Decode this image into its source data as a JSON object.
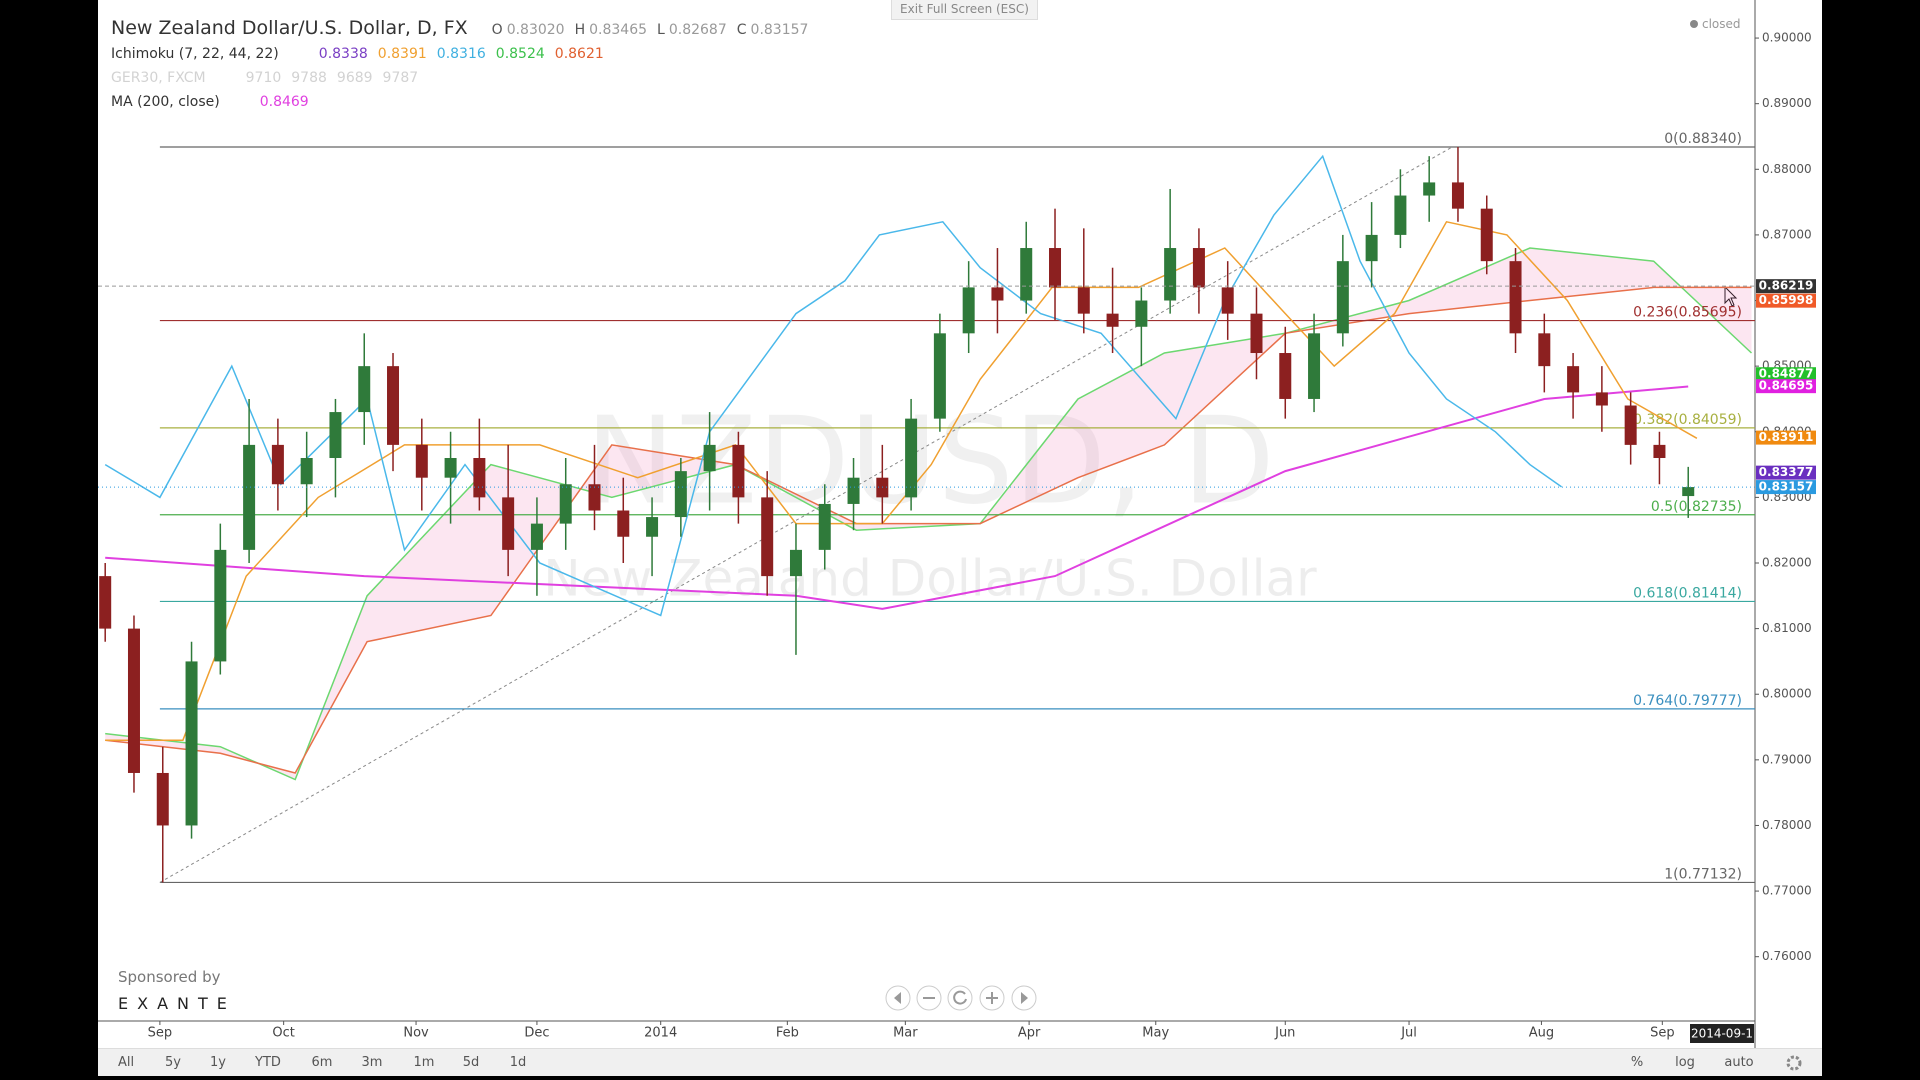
{
  "window": {
    "exit_fullscreen": "Exit Full Screen (ESC)",
    "status": "closed"
  },
  "legend": {
    "title": "New Zealand Dollar/U.S. Dollar, D, FX",
    "ohlc": [
      {
        "key": "O",
        "value": 0.8302,
        "label": "0.83020"
      },
      {
        "key": "H",
        "value": 0.83465,
        "label": "0.83465"
      },
      {
        "key": "L",
        "value": 0.82687,
        "label": "0.82687"
      },
      {
        "key": "C",
        "value": 0.83157,
        "label": "0.83157"
      }
    ],
    "indicators": [
      {
        "name": "Ichimoku (7, 22, 44, 22)",
        "values": [
          0.8338,
          0.8391,
          0.8316,
          0.8524,
          0.8621
        ],
        "colors": [
          "#7a3fc4",
          "#f0a030",
          "#40b0e0",
          "#3cc04c",
          "#e06030"
        ]
      },
      {
        "name": "GER30, FXCM",
        "values": [
          9710,
          9788,
          9689,
          9787
        ],
        "colors": [
          "#c8c8c8",
          "#c8c8c8",
          "#c8c8c8",
          "#c8c8c8"
        ],
        "faded": true
      },
      {
        "name": "MA (200, close)",
        "values": [
          0.8469
        ],
        "colors": [
          "#e040e0"
        ]
      }
    ]
  },
  "watermark": {
    "symbol": "NZDUSD, D",
    "description": "New Zealand Dollar/U.S. Dollar"
  },
  "sponsor": {
    "label": "Sponsored by",
    "name": "EXANTE"
  },
  "toolbar": {
    "ranges": [
      "All",
      "5y",
      "1y",
      "YTD",
      "6m",
      "3m",
      "1m",
      "5d",
      "1d"
    ],
    "options": [
      "%",
      "log",
      "auto"
    ]
  },
  "chart_data": {
    "type": "candlestick",
    "up_color": "#2f7a3a",
    "down_color": "#8c2020",
    "candles": [
      [
        0.818,
        0.82,
        0.808,
        0.81
      ],
      [
        0.81,
        0.812,
        0.785,
        0.788
      ],
      [
        0.788,
        0.792,
        0.77132,
        0.78
      ],
      [
        0.78,
        0.808,
        0.778,
        0.805
      ],
      [
        0.805,
        0.826,
        0.803,
        0.822
      ],
      [
        0.822,
        0.845,
        0.82,
        0.838
      ],
      [
        0.838,
        0.842,
        0.828,
        0.832
      ],
      [
        0.832,
        0.84,
        0.827,
        0.836
      ],
      [
        0.836,
        0.845,
        0.83,
        0.843
      ],
      [
        0.843,
        0.855,
        0.838,
        0.85
      ],
      [
        0.85,
        0.852,
        0.834,
        0.838
      ],
      [
        0.838,
        0.842,
        0.828,
        0.833
      ],
      [
        0.833,
        0.84,
        0.826,
        0.836
      ],
      [
        0.836,
        0.842,
        0.828,
        0.83
      ],
      [
        0.83,
        0.838,
        0.818,
        0.822
      ],
      [
        0.822,
        0.83,
        0.815,
        0.826
      ],
      [
        0.826,
        0.836,
        0.822,
        0.832
      ],
      [
        0.832,
        0.838,
        0.825,
        0.828
      ],
      [
        0.828,
        0.833,
        0.82,
        0.824
      ],
      [
        0.824,
        0.83,
        0.818,
        0.827
      ],
      [
        0.827,
        0.836,
        0.824,
        0.834
      ],
      [
        0.834,
        0.843,
        0.828,
        0.838
      ],
      [
        0.838,
        0.84,
        0.826,
        0.83
      ],
      [
        0.83,
        0.834,
        0.815,
        0.818
      ],
      [
        0.818,
        0.826,
        0.806,
        0.822
      ],
      [
        0.822,
        0.832,
        0.819,
        0.829
      ],
      [
        0.829,
        0.836,
        0.825,
        0.833
      ],
      [
        0.833,
        0.838,
        0.826,
        0.83
      ],
      [
        0.83,
        0.845,
        0.828,
        0.842
      ],
      [
        0.842,
        0.858,
        0.84,
        0.855
      ],
      [
        0.855,
        0.866,
        0.852,
        0.862
      ],
      [
        0.862,
        0.868,
        0.855,
        0.86
      ],
      [
        0.86,
        0.872,
        0.858,
        0.868
      ],
      [
        0.868,
        0.874,
        0.857,
        0.862
      ],
      [
        0.862,
        0.871,
        0.855,
        0.858
      ],
      [
        0.858,
        0.865,
        0.852,
        0.856
      ],
      [
        0.856,
        0.862,
        0.85,
        0.86
      ],
      [
        0.86,
        0.877,
        0.858,
        0.868
      ],
      [
        0.868,
        0.871,
        0.858,
        0.862
      ],
      [
        0.862,
        0.866,
        0.854,
        0.858
      ],
      [
        0.858,
        0.862,
        0.848,
        0.852
      ],
      [
        0.852,
        0.856,
        0.842,
        0.845
      ],
      [
        0.845,
        0.858,
        0.843,
        0.855
      ],
      [
        0.855,
        0.87,
        0.853,
        0.866
      ],
      [
        0.866,
        0.875,
        0.862,
        0.87
      ],
      [
        0.87,
        0.88,
        0.868,
        0.876
      ],
      [
        0.876,
        0.882,
        0.872,
        0.878
      ],
      [
        0.878,
        0.8834,
        0.872,
        0.874
      ],
      [
        0.874,
        0.876,
        0.864,
        0.866
      ],
      [
        0.866,
        0.868,
        0.852,
        0.855
      ],
      [
        0.855,
        0.858,
        0.846,
        0.85
      ],
      [
        0.85,
        0.852,
        0.842,
        0.846
      ],
      [
        0.846,
        0.85,
        0.84,
        0.844
      ],
      [
        0.844,
        0.846,
        0.835,
        0.838
      ],
      [
        0.838,
        0.84,
        0.832,
        0.836
      ],
      [
        0.8302,
        0.83465,
        0.82687,
        0.83157
      ]
    ],
    "xlim": [
      -0.25,
      57.32
    ],
    "ylim": [
      0.7502,
      0.9058
    ],
    "yticks": [
      {
        "value": 0.9,
        "label": "0.90000"
      },
      {
        "value": 0.89,
        "label": "0.89000"
      },
      {
        "value": 0.88,
        "label": "0.88000"
      },
      {
        "value": 0.87,
        "label": "0.87000"
      },
      {
        "value": 0.86,
        "label": "0.86000"
      },
      {
        "value": 0.85,
        "label": "0.85000"
      },
      {
        "value": 0.84,
        "label": "0.84000"
      },
      {
        "value": 0.83,
        "label": "0.83000"
      },
      {
        "value": 0.82,
        "label": "0.82000"
      },
      {
        "value": 0.81,
        "label": "0.81000"
      },
      {
        "value": 0.8,
        "label": "0.80000"
      },
      {
        "value": 0.79,
        "label": "0.79000"
      },
      {
        "value": 0.78,
        "label": "0.78000"
      },
      {
        "value": 0.77,
        "label": "0.77000"
      },
      {
        "value": 0.76,
        "label": "0.76000"
      }
    ],
    "xticks": [
      {
        "value": 1.9,
        "label": "Sep"
      },
      {
        "value": 6.2,
        "label": "Oct"
      },
      {
        "value": 10.8,
        "label": "Nov"
      },
      {
        "value": 15.0,
        "label": "Dec"
      },
      {
        "value": 19.3,
        "label": "2014"
      },
      {
        "value": 23.7,
        "label": "Feb"
      },
      {
        "value": 27.8,
        "label": "Mar"
      },
      {
        "value": 32.1,
        "label": "Apr"
      },
      {
        "value": 36.5,
        "label": "May"
      },
      {
        "value": 41.0,
        "label": "Jun"
      },
      {
        "value": 45.3,
        "label": "Jul"
      },
      {
        "value": 49.9,
        "label": "Aug"
      },
      {
        "value": 54.1,
        "label": "Sep"
      }
    ],
    "date_label": "2014-09-1",
    "cloud": {
      "fill": "rgba(240,140,190,0.22)",
      "x": [
        0,
        4,
        6.6,
        9.1,
        13.4,
        17.6,
        21.9,
        26.1,
        30.4,
        33.8,
        36.8,
        41.0,
        45.3,
        49.5,
        53.8,
        57.2
      ],
      "lead_a": {
        "color": "#6cd870",
        "values": [
          0.794,
          0.792,
          0.787,
          0.815,
          0.835,
          0.83,
          0.835,
          0.825,
          0.826,
          0.845,
          0.852,
          0.855,
          0.86,
          0.868,
          0.866,
          0.852
        ]
      },
      "lead_b": {
        "color": "#e8704a",
        "values": [
          0.793,
          0.791,
          0.788,
          0.808,
          0.812,
          0.838,
          0.835,
          0.826,
          0.826,
          0.833,
          0.838,
          0.855,
          0.858,
          0.86,
          0.862,
          0.862
        ]
      }
    },
    "overlays": [
      {
        "color": "#e040e0",
        "width": 2,
        "x": [
          0,
          9,
          24,
          27,
          33,
          41,
          50,
          55
        ],
        "values": [
          0.8208,
          0.818,
          0.815,
          0.813,
          0.818,
          0.834,
          0.845,
          0.8469
        ]
      },
      {
        "color": "#f0a030",
        "width": 1.5,
        "x": [
          0,
          2.7,
          4.9,
          7.4,
          10.4,
          15.1,
          18.5,
          21.9,
          24.0,
          27.0,
          28.7,
          30.4,
          32.9,
          35.9,
          38.9,
          41.0,
          42.7,
          44.8,
          46.6,
          48.7,
          50.8,
          52.9,
          55.3
        ],
        "values": [
          0.793,
          0.793,
          0.818,
          0.83,
          0.838,
          0.838,
          0.833,
          0.838,
          0.826,
          0.826,
          0.835,
          0.848,
          0.862,
          0.862,
          0.868,
          0.858,
          0.85,
          0.858,
          0.872,
          0.87,
          0.86,
          0.845,
          0.839
        ]
      },
      {
        "color": "#4ab8ea",
        "width": 1.5,
        "x": [
          0,
          1.9,
          4.4,
          6.1,
          9.1,
          10.4,
          12.5,
          15.1,
          19.3,
          21.0,
          24.0,
          25.7,
          26.9,
          29.1,
          30.4,
          32.5,
          34.6,
          37.2,
          38.9,
          40.6,
          42.3,
          43.6,
          45.3,
          46.6,
          48.3,
          49.5,
          50.6
        ],
        "values": [
          0.835,
          0.83,
          0.85,
          0.832,
          0.845,
          0.822,
          0.835,
          0.82,
          0.812,
          0.84,
          0.858,
          0.863,
          0.87,
          0.872,
          0.865,
          0.858,
          0.855,
          0.842,
          0.86,
          0.873,
          0.882,
          0.866,
          0.852,
          0.845,
          0.84,
          0.835,
          0.8316
        ]
      }
    ],
    "trendline": {
      "color": "#888",
      "x": [
        1.9,
        46.8
      ],
      "values": [
        0.77132,
        0.8834
      ]
    },
    "fib": [
      {
        "label": "0(0.88340)",
        "value": 0.8834,
        "color": "#666"
      },
      {
        "label": "0.236(0.85695)",
        "value": 0.85695,
        "color": "#a03030"
      },
      {
        "label": "0.382(0.84059)",
        "value": 0.84059,
        "color": "#a8b040"
      },
      {
        "label": "0.5(0.82735)",
        "value": 0.82735,
        "color": "#4cae4c"
      },
      {
        "label": "0.618(0.81414)",
        "value": 0.81414,
        "color": "#3aa8a0"
      },
      {
        "label": "0.764(0.79777)",
        "value": 0.79777,
        "color": "#3a8fbf"
      },
      {
        "label": "1(0.77132)",
        "value": 0.77132,
        "color": "#666"
      }
    ],
    "price_labels": [
      {
        "value": 0.86219,
        "color": "#333333"
      },
      {
        "value": 0.85998,
        "color": "#f05a28"
      },
      {
        "value": 0.84877,
        "color": "#22c02a"
      },
      {
        "value": 0.84695,
        "color": "#e020e0"
      },
      {
        "value": 0.83911,
        "color": "#f08a10"
      },
      {
        "value": 0.83377,
        "color": "#6a2fc0"
      },
      {
        "value": 0.83157,
        "color": "#2a9ae0"
      }
    ]
  }
}
